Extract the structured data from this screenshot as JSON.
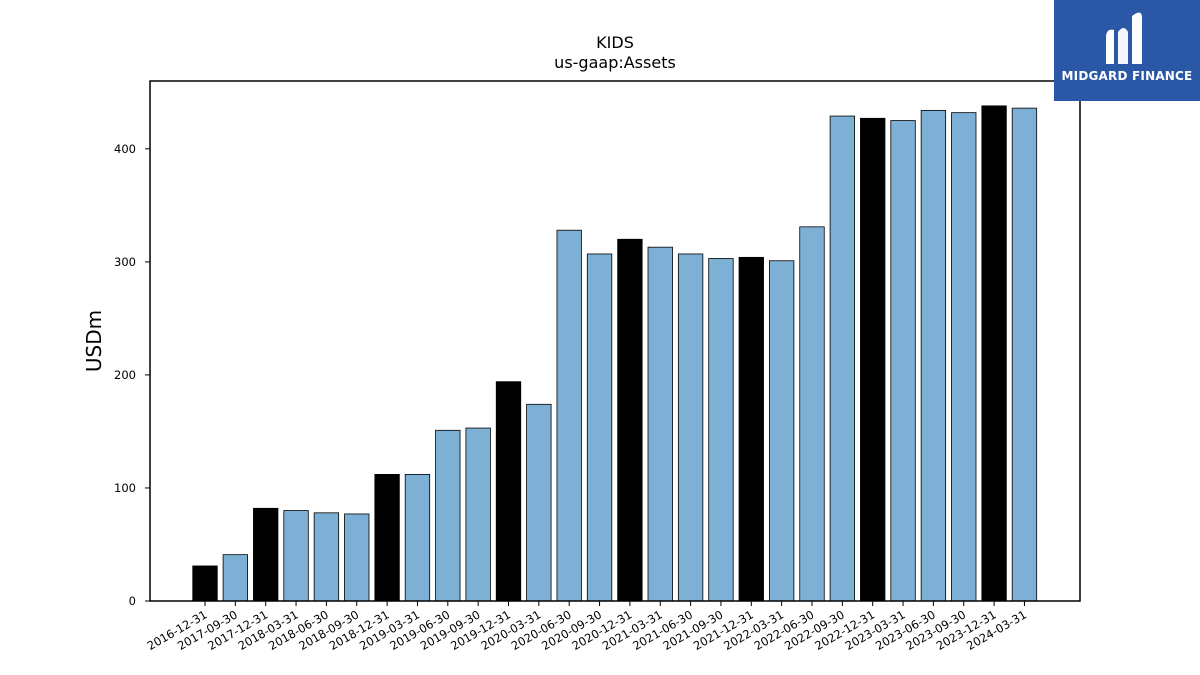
{
  "logo": {
    "text": "MIDGARD FINANCE"
  },
  "colors": {
    "annual": "#000000",
    "quarterly": "#7eb0d5",
    "logo_bg": "#2b57a7"
  },
  "chart_data": {
    "type": "bar",
    "title": "KIDS",
    "subtitle": "us-gaap:Assets",
    "xlabel": "",
    "ylabel": "USDm",
    "ylim": [
      0,
      460
    ],
    "yticks": [
      0,
      100,
      200,
      300,
      400
    ],
    "grid": false,
    "categories": [
      "2016-12-31",
      "2017-09-30",
      "2017-12-31",
      "2018-03-31",
      "2018-06-30",
      "2018-09-30",
      "2018-12-31",
      "2019-03-31",
      "2019-06-30",
      "2019-09-30",
      "2019-12-31",
      "2020-03-31",
      "2020-06-30",
      "2020-09-30",
      "2020-12-31",
      "2021-03-31",
      "2021-06-30",
      "2021-09-30",
      "2021-12-31",
      "2022-03-31",
      "2022-06-30",
      "2022-09-30",
      "2022-12-31",
      "2023-03-31",
      "2023-06-30",
      "2023-09-30",
      "2023-12-31",
      "2024-03-31"
    ],
    "values": [
      31,
      41,
      82,
      80,
      78,
      77,
      112,
      112,
      151,
      153,
      194,
      174,
      328,
      307,
      320,
      313,
      307,
      303,
      304,
      301,
      331,
      429,
      427,
      425,
      434,
      432,
      438,
      436
    ],
    "annual": [
      true,
      false,
      true,
      false,
      false,
      false,
      true,
      false,
      false,
      false,
      true,
      false,
      false,
      false,
      true,
      false,
      false,
      false,
      true,
      false,
      false,
      false,
      true,
      false,
      false,
      false,
      true,
      false
    ]
  }
}
